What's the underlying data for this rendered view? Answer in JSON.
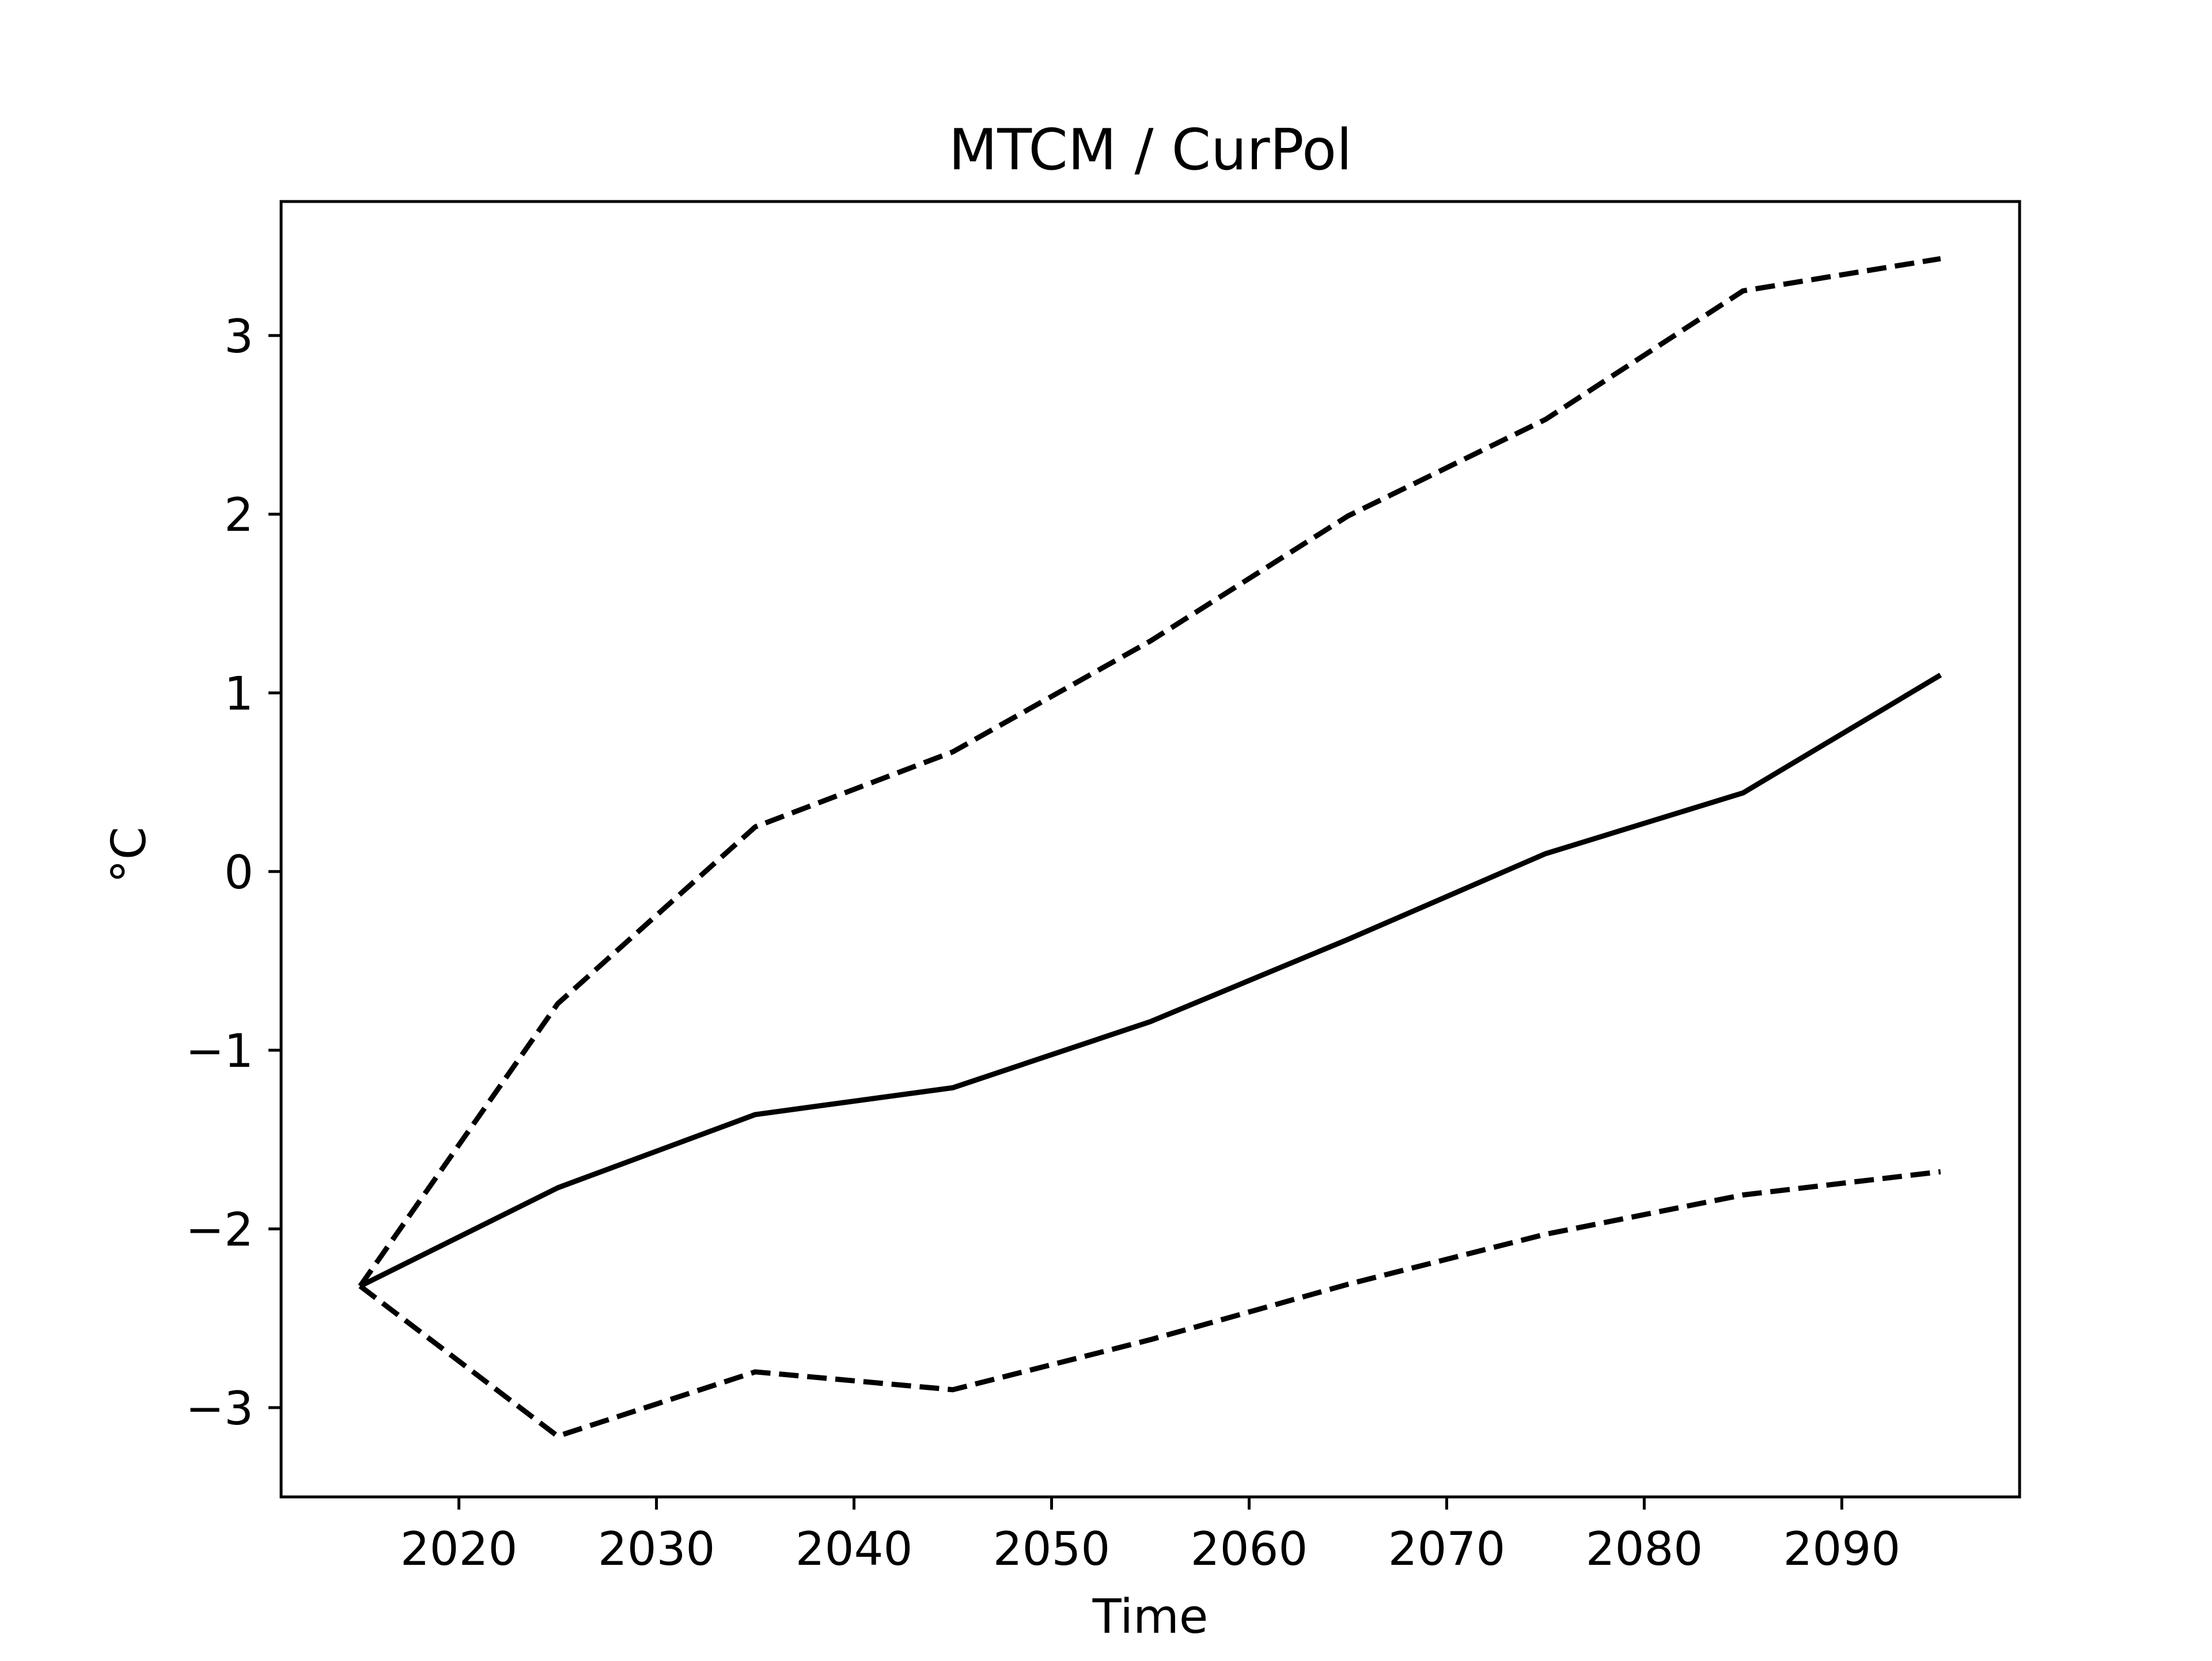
{
  "chart_data": {
    "type": "line",
    "title": "MTCM / CurPol",
    "xlabel": "Time",
    "ylabel": "°C",
    "xlim": [
      2011,
      2099
    ],
    "ylim": [
      -3.5,
      3.75
    ],
    "xticks": [
      2020,
      2030,
      2040,
      2050,
      2060,
      2070,
      2080,
      2090
    ],
    "yticks": [
      -3,
      -2,
      -1,
      0,
      1,
      2,
      3
    ],
    "ytick_labels": [
      "−3",
      "−2",
      "−1",
      "0",
      "1",
      "2",
      "3"
    ],
    "grid": false,
    "legend": "none",
    "x": [
      2015,
      2025,
      2035,
      2045,
      2055,
      2065,
      2075,
      2085,
      2095
    ],
    "series": [
      {
        "style": "solid",
        "color": "#000000",
        "values": [
          -2.32,
          -1.77,
          -1.36,
          -1.21,
          -0.84,
          -0.38,
          0.1,
          0.44,
          1.1
        ]
      },
      {
        "style": "dashed",
        "color": "#000000",
        "values": [
          -2.32,
          -0.74,
          0.25,
          0.67,
          1.29,
          1.99,
          2.53,
          3.25,
          3.43
        ]
      },
      {
        "style": "dashed",
        "color": "#000000",
        "values": [
          -2.32,
          -3.16,
          -2.8,
          -2.9,
          -2.62,
          -2.31,
          -2.03,
          -1.81,
          -1.68
        ]
      }
    ]
  }
}
